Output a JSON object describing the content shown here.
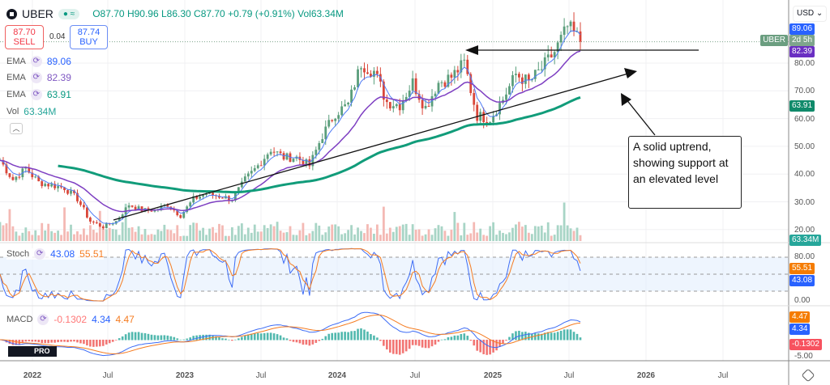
{
  "header": {
    "symbol": "UBER",
    "open": "O87.70",
    "high": "H90.96",
    "low": "L86.30",
    "close": "C87.70",
    "change": "+0.79 (+0.91%)",
    "volume": "Vol63.34M"
  },
  "trade": {
    "sell_price": "87.70",
    "sell_label": "SELL",
    "spread": "0.04",
    "buy_price": "87.74",
    "buy_label": "BUY"
  },
  "legend": {
    "ema1_label": "EMA",
    "ema1": "89.06",
    "ema2_label": "EMA",
    "ema2": "82.39",
    "ema3_label": "EMA",
    "ema3": "63.91",
    "vol_label": "Vol",
    "vol": "63.34M",
    "stoch_label": "Stoch",
    "stoch_k": "43.08",
    "stoch_d": "55.51",
    "macd_label": "MACD",
    "macd_hist": "-0.1302",
    "macd": "4.34",
    "macd_signal": "4.47"
  },
  "axis": {
    "currency": "USD",
    "countdown_symbol": "UBER",
    "countdown": "2d 5h",
    "vol_badge": "63.34M",
    "stoch_ticks": [
      "80.00",
      "0.00"
    ],
    "macd_ticks": [
      "-5.00"
    ]
  },
  "annotation": {
    "text": "A solid uptrend, showing support at an elevated level"
  },
  "colors": {
    "up": "#5a9e7b",
    "down": "#d9473a",
    "ema1": "#4f7cf5",
    "ema2": "#7e3fc2",
    "ema3": "#119c7a",
    "stoch_k": "#3d6cf5",
    "stoch_d": "#f57c21"
  },
  "chart_data": {
    "type": "candlestick",
    "title": "UBER",
    "ylim": [
      16,
      96
    ],
    "yticks": [
      "80.00",
      "70.00",
      "60.00",
      "50.00",
      "40.00",
      "30.00",
      "20.00"
    ],
    "xticks": [
      "2022",
      "Jul",
      "2023",
      "Jul",
      "2024",
      "Jul",
      "2025",
      "Jul",
      "2026",
      "Jul"
    ],
    "monthly_close_approx": {
      "start": "2021-10",
      "values": [
        45,
        38,
        42,
        37,
        36,
        35,
        31,
        23,
        21,
        23,
        29,
        27,
        27,
        29,
        25,
        31,
        33,
        32,
        31,
        38,
        43,
        49,
        46,
        46,
        43,
        54,
        62,
        65,
        80,
        77,
        66,
        65,
        73,
        64,
        73,
        75,
        80,
        61,
        60,
        67,
        76,
        73,
        78,
        84,
        93,
        88
      ]
    },
    "last": {
      "open": 87.7,
      "high": 90.96,
      "low": 86.3,
      "close": 87.7,
      "volume": "63.34M"
    },
    "ema_last": [
      89.06,
      82.39,
      63.91
    ],
    "stoch_last": {
      "k": 43.08,
      "d": 55.51
    },
    "macd_last": {
      "hist": -0.1302,
      "macd": 4.34,
      "signal": 4.47
    },
    "legend": "top-left",
    "grid": true
  }
}
